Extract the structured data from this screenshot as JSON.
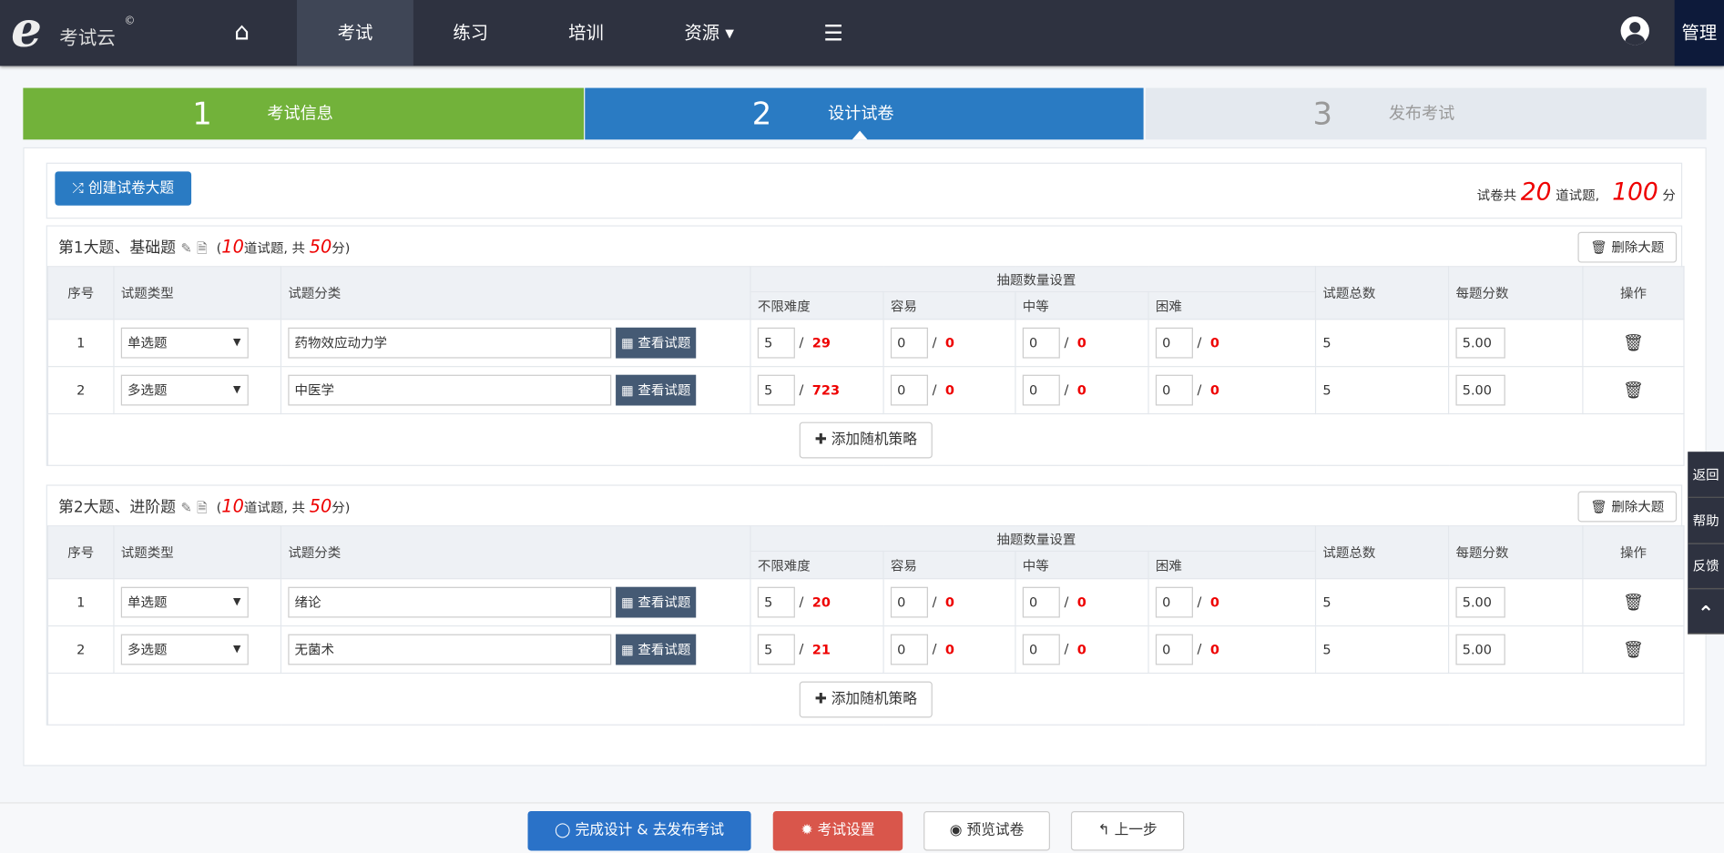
{
  "header": {
    "logo_letter": "e",
    "logo_text": "考试云",
    "logo_mark": "©",
    "nav": [
      {
        "icon": "home-icon",
        "label": "⌂"
      },
      {
        "label": "考试",
        "active": true
      },
      {
        "label": "练习"
      },
      {
        "label": "培训"
      },
      {
        "label": "资源 ▾"
      },
      {
        "icon": "list-icon",
        "label": "☰"
      }
    ],
    "admin": "管理"
  },
  "steps": [
    {
      "num": "1",
      "label": "考试信息",
      "color": "#72b23a"
    },
    {
      "num": "2",
      "label": "设计试卷",
      "color": "#2a7bc3"
    },
    {
      "num": "3",
      "label": "发布考试",
      "color": "#e4e9ef"
    }
  ],
  "toolbar": {
    "create_label": "创建试卷大题",
    "summary_prefix": "试卷共",
    "total_questions": "20",
    "summary_mid": "道试题,",
    "total_score": "100",
    "summary_suffix": "分"
  },
  "table_headers": {
    "index": "序号",
    "type": "试题类型",
    "category": "试题分类",
    "draw": "抽题数量设置",
    "any": "不限难度",
    "easy": "容易",
    "medium": "中等",
    "hard": "困难",
    "total": "试题总数",
    "score": "每题分数",
    "op": "操作"
  },
  "view_label": "查看试题",
  "add_label": "添加随机策略",
  "delete_label": "删除大题",
  "sections": [
    {
      "title": "第1大题、基础题",
      "count": "10",
      "count_text": "道试题, 共",
      "score": "50",
      "score_text": "分)",
      "open": "(",
      "rows": [
        {
          "idx": "1",
          "type": "单选题",
          "category": "药物效应动力学",
          "any": "5",
          "any_max": "29",
          "easy": "0",
          "easy_max": "0",
          "medium": "0",
          "medium_max": "0",
          "hard": "0",
          "hard_max": "0",
          "total": "5",
          "score": "5.00"
        },
        {
          "idx": "2",
          "type": "多选题",
          "category": "中医学",
          "any": "5",
          "any_max": "723",
          "easy": "0",
          "easy_max": "0",
          "medium": "0",
          "medium_max": "0",
          "hard": "0",
          "hard_max": "0",
          "total": "5",
          "score": "5.00"
        }
      ]
    },
    {
      "title": "第2大题、进阶题",
      "count": "10",
      "count_text": "道试题, 共",
      "score": "50",
      "score_text": "分)",
      "open": "(",
      "rows": [
        {
          "idx": "1",
          "type": "单选题",
          "category": "绪论",
          "any": "5",
          "any_max": "20",
          "easy": "0",
          "easy_max": "0",
          "medium": "0",
          "medium_max": "0",
          "hard": "0",
          "hard_max": "0",
          "total": "5",
          "score": "5.00"
        },
        {
          "idx": "2",
          "type": "多选题",
          "category": "无菌术",
          "any": "5",
          "any_max": "21",
          "easy": "0",
          "easy_max": "0",
          "medium": "0",
          "medium_max": "0",
          "hard": "0",
          "hard_max": "0",
          "total": "5",
          "score": "5.00"
        }
      ]
    }
  ],
  "footer": {
    "finish": "完成设计 & 去发布考试",
    "settings": "考试设置",
    "preview": "预览试卷",
    "back": "上一步"
  },
  "float": {
    "back": "返回",
    "help": "帮助",
    "feedback": "反馈",
    "top": "⌃"
  }
}
